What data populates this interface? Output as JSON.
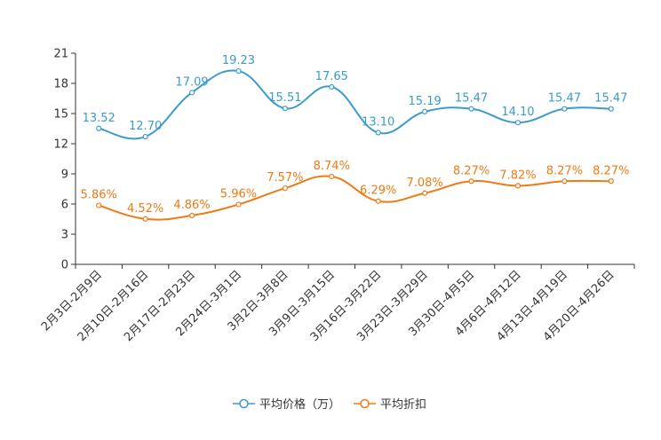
{
  "chart_data": {
    "type": "line",
    "title": "",
    "xlabel": "",
    "ylabel": "",
    "ylim": [
      0,
      21
    ],
    "yticks": [
      0,
      3,
      6,
      9,
      12,
      15,
      18,
      21
    ],
    "ytick_labels": [
      "0",
      "3",
      "6",
      "9",
      "12",
      "15",
      "18",
      "21"
    ],
    "grid": false,
    "legend_position": "bottom-center",
    "categories": [
      "2月3日-2月9日",
      "2月10日-2月16日",
      "2月17日-2月23日",
      "2月24日-3月1日",
      "3月2日-3月8日",
      "3月9日-3月15日",
      "3月16日-3月22日",
      "3月23日-3月29日",
      "3月30日-4月5日",
      "4月6日-4月12日",
      "4月13日-4月19日",
      "4月20日-4月26日"
    ],
    "series": [
      {
        "name": "平均价格（万）",
        "color": "#3a9bce",
        "values": [
          13.52,
          12.7,
          17.09,
          19.23,
          15.51,
          17.65,
          13.1,
          15.19,
          15.47,
          14.1,
          15.47,
          15.47
        ],
        "labels": [
          "13.52",
          "12.70",
          "17.09",
          "19.23",
          "15.51",
          "17.65",
          "13.10",
          "15.19",
          "15.47",
          "14.10",
          "15.47",
          "15.47"
        ]
      },
      {
        "name": "平均折扣",
        "color": "#ef7a14",
        "values": [
          5.86,
          4.52,
          4.86,
          5.96,
          7.57,
          8.74,
          6.29,
          7.08,
          8.27,
          7.82,
          8.27,
          8.27
        ],
        "labels": [
          "5.86%",
          "4.52%",
          "4.86%",
          "5.96%",
          "7.57%",
          "8.74%",
          "6.29%",
          "7.08%",
          "8.27%",
          "7.82%",
          "8.27%",
          "8.27%"
        ]
      }
    ]
  }
}
